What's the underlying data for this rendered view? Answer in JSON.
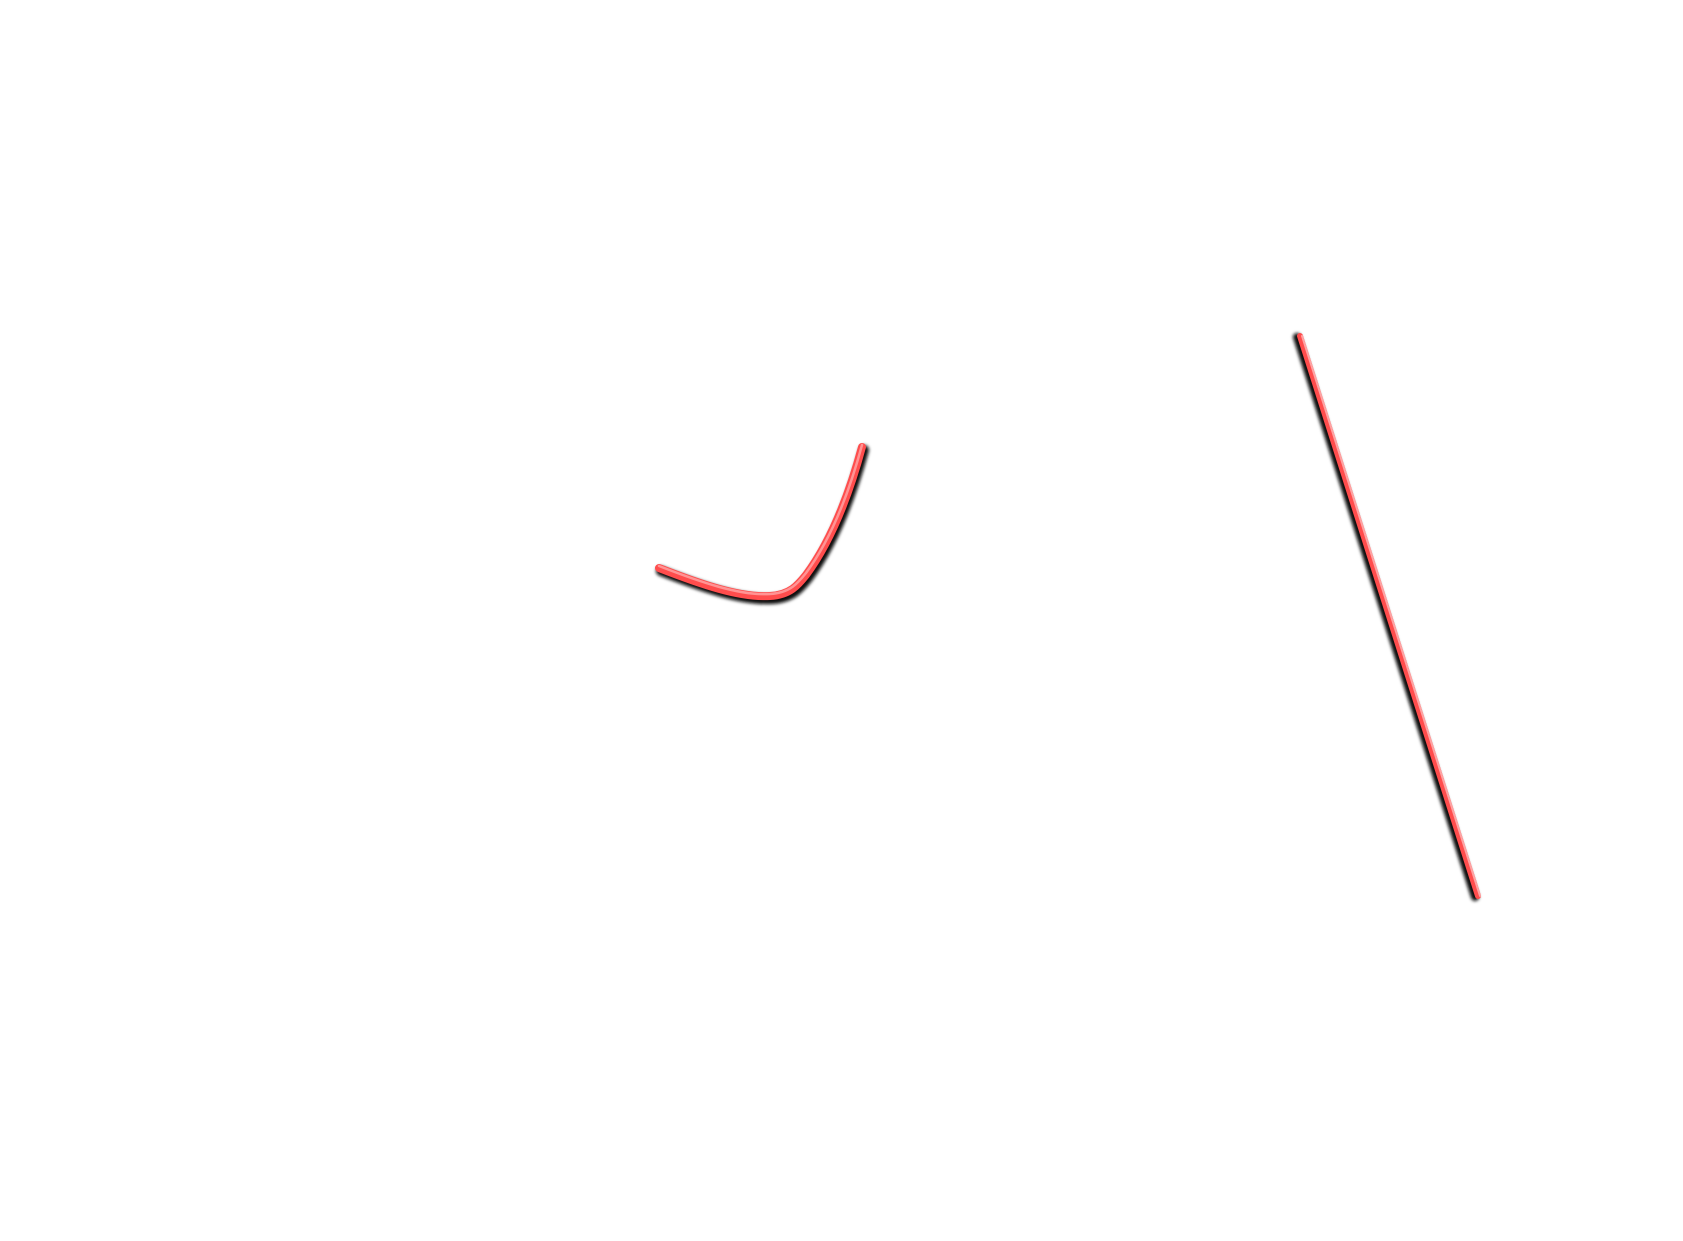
{
  "canvas": {
    "background": "#ffffff"
  },
  "strokes": [
    {
      "name": "curved-stroke",
      "shape": "hook-curve",
      "color": "#ff4d4d",
      "shadow_color": "#1a1a1a"
    },
    {
      "name": "straight-stroke",
      "shape": "diagonal-line",
      "color": "#ff4d4d",
      "shadow_color": "#1a1a1a"
    }
  ]
}
